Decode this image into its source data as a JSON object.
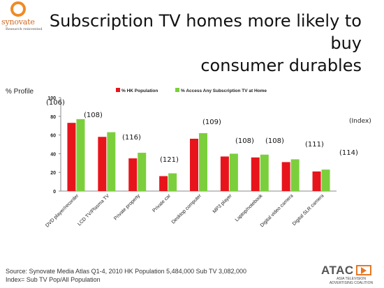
{
  "logo": {
    "name": "synovate",
    "tagline": "Research reinvented"
  },
  "slide": {
    "title_line1": "Subscription TV homes more likely to buy",
    "title_line2": "consumer durables"
  },
  "chart_data": {
    "type": "bar",
    "ylabel": "% Profile",
    "ylim": [
      0,
      100
    ],
    "yticks": [
      0,
      20,
      40,
      60,
      80,
      100
    ],
    "categories": [
      "DVD player/recorder",
      "LCD TV/Plasma TV",
      "Private property",
      "Private car",
      "Desktop computer",
      "MP3 player",
      "Laptop/notebook",
      "Digital video camera",
      "Digital SLR camera"
    ],
    "series": [
      {
        "name": "% HK Population",
        "values": [
          73,
          58,
          35,
          16,
          56,
          37,
          36,
          31,
          21
        ]
      },
      {
        "name": "% Access Any Subscription TV at Home",
        "values": [
          77,
          63,
          41,
          19,
          62,
          40,
          39,
          34,
          23
        ]
      }
    ],
    "index_label": "(Index)",
    "index_values": [
      "(106)",
      "(108)",
      "(116)",
      "(121)",
      "(109)",
      "(108)",
      "(108)",
      "(111)",
      "(114)"
    ],
    "legend_position": "top",
    "grid": false,
    "colors": {
      "series1": "#e8141c",
      "series2": "#7ccf3c"
    }
  },
  "footer": {
    "line1": "Source: Synovate Media Atlas Q1-4, 2010  HK Population 5,484,000 Sub TV 3,082,000",
    "line2": "Index= Sub TV Pop/All Population"
  },
  "atac": {
    "wordmark": "ATAC",
    "line1": "ASIA TELEVISION",
    "line2": "ADVERTISING COALITION"
  }
}
